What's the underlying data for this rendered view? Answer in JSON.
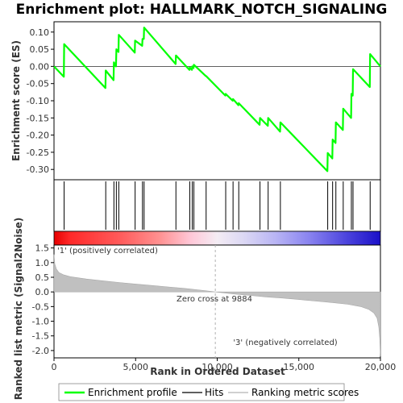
{
  "chart_data": {
    "type": "line",
    "title": "Enrichment plot: HALLMARK_NOTCH_SIGNALING",
    "n_genes": 20000,
    "es_panel": {
      "ylabel": "Enrichment score (ES)",
      "ylim": [
        -0.33,
        0.13
      ],
      "yticks": [
        0.1,
        0.05,
        0.0,
        -0.05,
        -0.1,
        -0.15,
        -0.2,
        -0.25,
        -0.3
      ],
      "ytick_labels": [
        "0.10",
        "0.05",
        "0.00",
        "-0.05",
        "-0.10",
        "-0.15",
        "-0.20",
        "-0.25",
        "-0.30"
      ],
      "grid": false,
      "series": [
        {
          "name": "Enrichment profile",
          "color": "#00ff00",
          "x": [
            0,
            600,
            620,
            3150,
            3170,
            3650,
            3670,
            3800,
            3820,
            3950,
            3970,
            4950,
            4970,
            5400,
            5420,
            5500,
            5520,
            7450,
            7470,
            8300,
            8320,
            8450,
            8470,
            8550,
            8570,
            9300,
            9320,
            10500,
            10520,
            10950,
            10970,
            11300,
            11320,
            12600,
            12620,
            13100,
            13120,
            13850,
            13870,
            16750,
            16770,
            17050,
            17070,
            17250,
            17270,
            17700,
            17720,
            18200,
            18220,
            18300,
            18320,
            19350,
            19370,
            20000
          ],
          "y": [
            0.0,
            -0.03,
            0.065,
            -0.063,
            -0.012,
            -0.04,
            0.012,
            0.0,
            0.05,
            0.042,
            0.092,
            0.04,
            0.075,
            0.06,
            0.08,
            0.08,
            0.113,
            0.007,
            0.032,
            -0.01,
            -0.003,
            -0.01,
            0.0,
            -0.005,
            0.005,
            -0.028,
            -0.028,
            -0.085,
            -0.08,
            -0.1,
            -0.095,
            -0.113,
            -0.107,
            -0.17,
            -0.15,
            -0.173,
            -0.15,
            -0.19,
            -0.163,
            -0.305,
            -0.252,
            -0.268,
            -0.213,
            -0.223,
            -0.163,
            -0.185,
            -0.123,
            -0.15,
            -0.08,
            -0.085,
            -0.008,
            -0.06,
            0.036,
            0.0
          ]
        }
      ]
    },
    "hits_panel": {
      "label": "Hits",
      "positions": [
        620,
        3170,
        3670,
        3820,
        3970,
        4970,
        5420,
        5520,
        7470,
        8320,
        8470,
        8570,
        9320,
        10520,
        10970,
        11320,
        12620,
        13120,
        13870,
        16770,
        17070,
        17270,
        17720,
        18220,
        18320,
        19370
      ]
    },
    "ranked_panel": {
      "ylabel": "Ranked list metric (Signal2Noise)",
      "ylim": [
        -2.25,
        1.6
      ],
      "yticks": [
        1.5,
        1.0,
        0.5,
        0.0,
        -0.5,
        -1.0,
        -1.5,
        -2.0
      ],
      "ytick_labels": [
        "1.5",
        "1.0",
        "0.5",
        "0.0",
        "-0.5",
        "-1.0",
        "-1.5",
        "-2.0"
      ],
      "xlabel": "Rank in Ordered Dataset",
      "xticks": [
        0,
        5000,
        10000,
        15000,
        20000
      ],
      "xtick_labels": [
        "0",
        "5,000",
        "10,000",
        "15,000",
        "20,000"
      ],
      "x": [
        0,
        50,
        150,
        300,
        600,
        1000,
        2000,
        3000,
        4000,
        5000,
        6000,
        7000,
        8000,
        9000,
        9884,
        11000,
        12000,
        13000,
        14000,
        15000,
        16000,
        17000,
        18000,
        18800,
        19300,
        19600,
        19800,
        19900,
        19960,
        20000
      ],
      "values": [
        1.28,
        0.95,
        0.78,
        0.66,
        0.58,
        0.52,
        0.44,
        0.38,
        0.32,
        0.27,
        0.22,
        0.17,
        0.12,
        0.06,
        0.0,
        -0.07,
        -0.12,
        -0.17,
        -0.21,
        -0.26,
        -0.31,
        -0.36,
        -0.42,
        -0.5,
        -0.6,
        -0.72,
        -0.9,
        -1.2,
        -1.6,
        -2.2
      ],
      "zero_cross_text": "Zero cross at 9884",
      "pos_label": "'1' (positively correlated)",
      "neg_label": "'3' (negatively correlated)",
      "series_name": "Ranking metric scores"
    },
    "legend": {
      "placement": "bottom",
      "items": [
        {
          "label": "Enrichment profile",
          "color": "#00ff00"
        },
        {
          "label": "Hits",
          "color": "#000000"
        },
        {
          "label": "Ranking metric scores",
          "color": "#c0c0c0"
        }
      ]
    },
    "colors": {
      "positive_label": "#cc0000",
      "negative_label": "#0000cc",
      "metric_fill": "#c0c0c0",
      "zero_line": "#b0b0b0"
    }
  }
}
